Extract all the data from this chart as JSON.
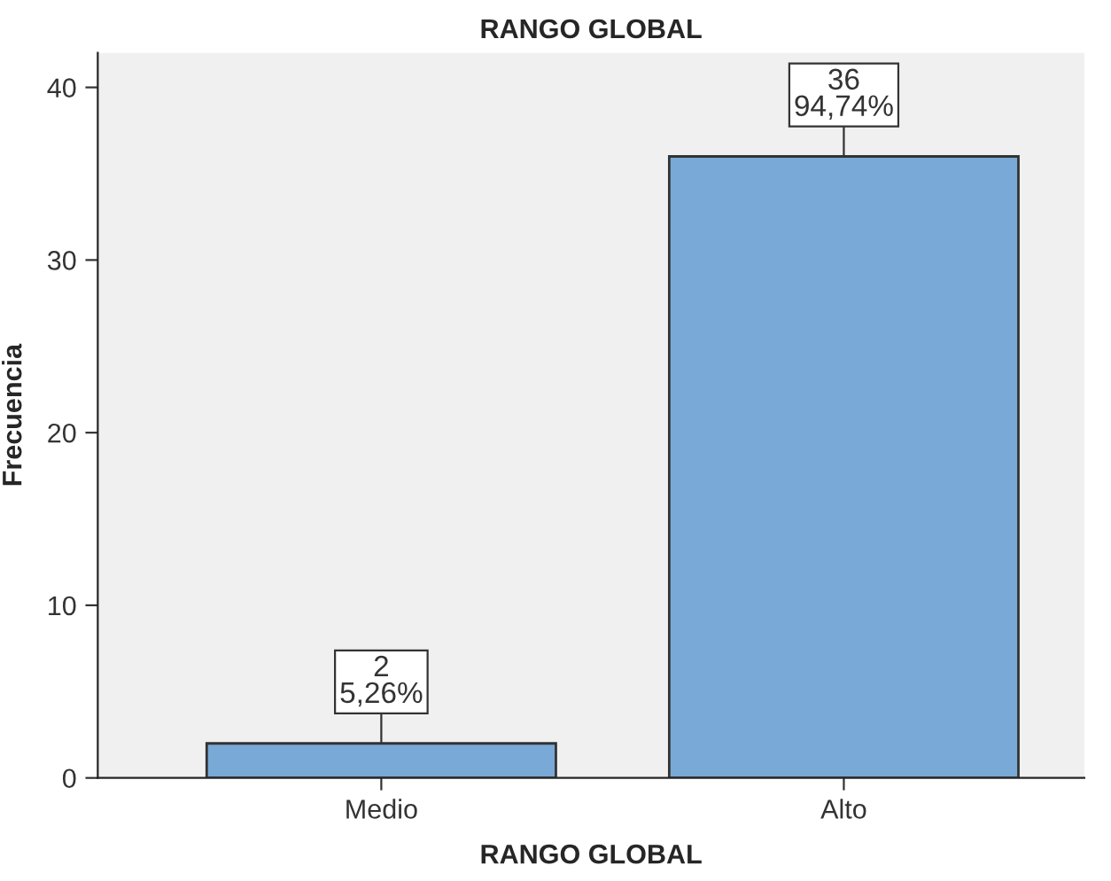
{
  "chart_data": {
    "type": "bar",
    "title": "RANGO GLOBAL",
    "xlabel": "RANGO GLOBAL",
    "ylabel": "Frecuencia",
    "categories": [
      "Medio",
      "Alto"
    ],
    "values": [
      2,
      36
    ],
    "color": "#79a9d6",
    "value_labels": [
      "2\n5,26%",
      "36\n94,74%"
    ],
    "ylim": [
      0,
      42
    ],
    "yticks": [
      0,
      10,
      20,
      30,
      40
    ],
    "grid": false
  }
}
